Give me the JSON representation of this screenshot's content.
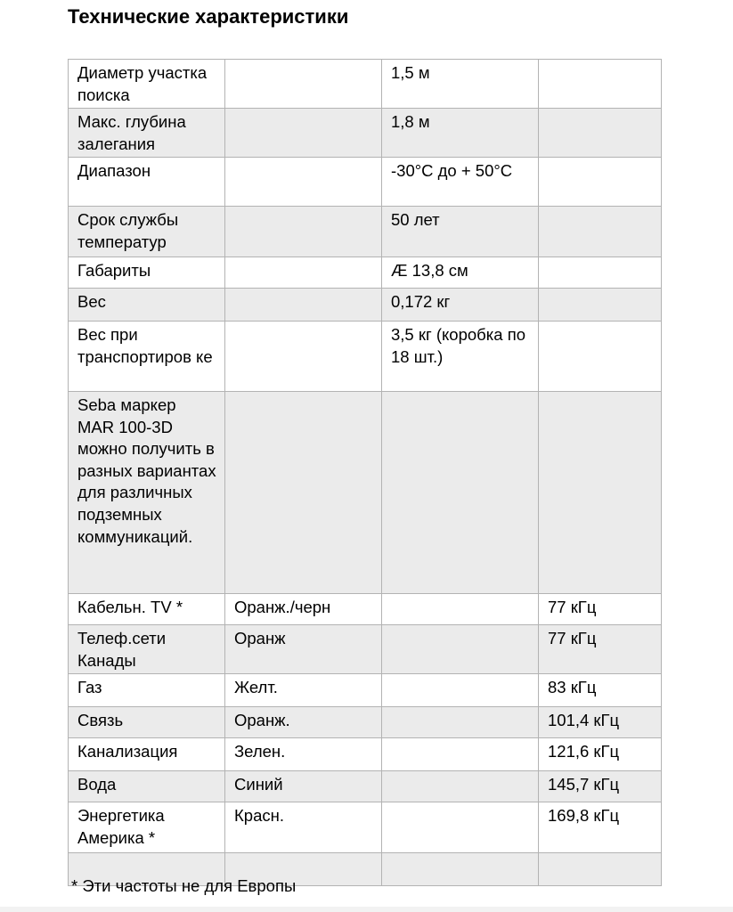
{
  "title": "Технические характеристики",
  "table": {
    "rows": [
      [
        "Диаметр участка поиска",
        "",
        "1,5 м",
        ""
      ],
      [
        "Макс. глубина залегания",
        "",
        "1,8 м",
        ""
      ],
      [
        "Диапазон",
        "",
        "-30°C до + 50°C",
        ""
      ],
      [
        "Срок службы температур",
        "",
        "50 лет",
        ""
      ],
      [
        "Габариты",
        "",
        "Æ 13,8 см",
        ""
      ],
      [
        "Вес",
        "",
        "0,172 кг",
        ""
      ],
      [
        "Вес при транспортиров ке",
        "",
        "3,5 кг (коробка по 18 шт.)",
        ""
      ],
      [
        "Seba маркер MAR 100-3D можно получить в разных вариантах для различных подземных коммуникаций.",
        "",
        "",
        ""
      ],
      [
        "Кабельн. TV *",
        "Оранж./черн",
        "",
        "77 кГц"
      ],
      [
        "Телеф.сети Канады",
        "Оранж",
        "",
        "77 кГц"
      ],
      [
        "Газ",
        "Желт.",
        "",
        "83 кГц"
      ],
      [
        "Связь",
        "Оранж.",
        "",
        "101,4 кГц"
      ],
      [
        "Канализация",
        "Зелен.",
        "",
        "121,6 кГц"
      ],
      [
        "Вода",
        "Синий",
        "",
        "145,7 кГц"
      ],
      [
        "Энергетика Америка *",
        "Красн.",
        "",
        "169,8 кГц"
      ],
      [
        "",
        "",
        "",
        ""
      ]
    ]
  },
  "footnote": "* Эти частоты не для Европы",
  "colors": {
    "row_alt": "#ebebeb",
    "border": "#b3b3b3"
  }
}
